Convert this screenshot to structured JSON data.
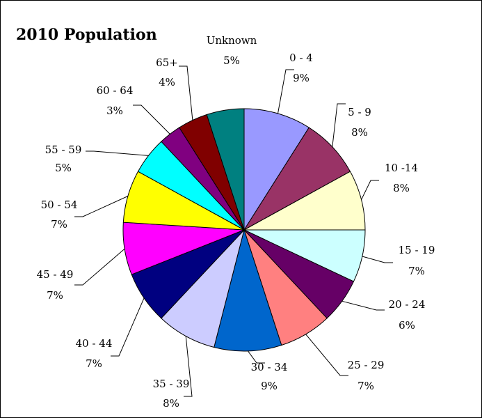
{
  "chart_data": {
    "type": "pie",
    "title": "2010 Population",
    "slices": [
      {
        "category": "0 - 4",
        "label": "9%",
        "value": 9,
        "color": "#9999ff"
      },
      {
        "category": "5 - 9",
        "label": "8%",
        "value": 8,
        "color": "#993366"
      },
      {
        "category": "10 -14",
        "label": "8%",
        "value": 8,
        "color": "#ffffcc"
      },
      {
        "category": "15 - 19",
        "label": "7%",
        "value": 7,
        "color": "#ccffff"
      },
      {
        "category": "20 - 24",
        "label": "6%",
        "value": 6,
        "color": "#660066"
      },
      {
        "category": "25 - 29",
        "label": "7%",
        "value": 7,
        "color": "#ff8080"
      },
      {
        "category": "30 - 34",
        "label": "9%",
        "value": 9,
        "color": "#0066cc"
      },
      {
        "category": "35 - 39",
        "label": "8%",
        "value": 8,
        "color": "#ccccff"
      },
      {
        "category": "40 - 44",
        "label": "7%",
        "value": 7,
        "color": "#000080"
      },
      {
        "category": "45 - 49",
        "label": "7%",
        "value": 7,
        "color": "#ff00ff"
      },
      {
        "category": "50 - 54",
        "label": "7%",
        "value": 7,
        "color": "#ffff00"
      },
      {
        "category": "55 - 59",
        "label": "5%",
        "value": 5,
        "color": "#00ffff"
      },
      {
        "category": "60 - 64",
        "label": "3%",
        "value": 3,
        "color": "#800080"
      },
      {
        "category": "65+",
        "label": "4%",
        "value": 4,
        "color": "#800000"
      },
      {
        "category": "Unknown",
        "label": "5%",
        "value": 5,
        "color": "#008080"
      }
    ]
  }
}
